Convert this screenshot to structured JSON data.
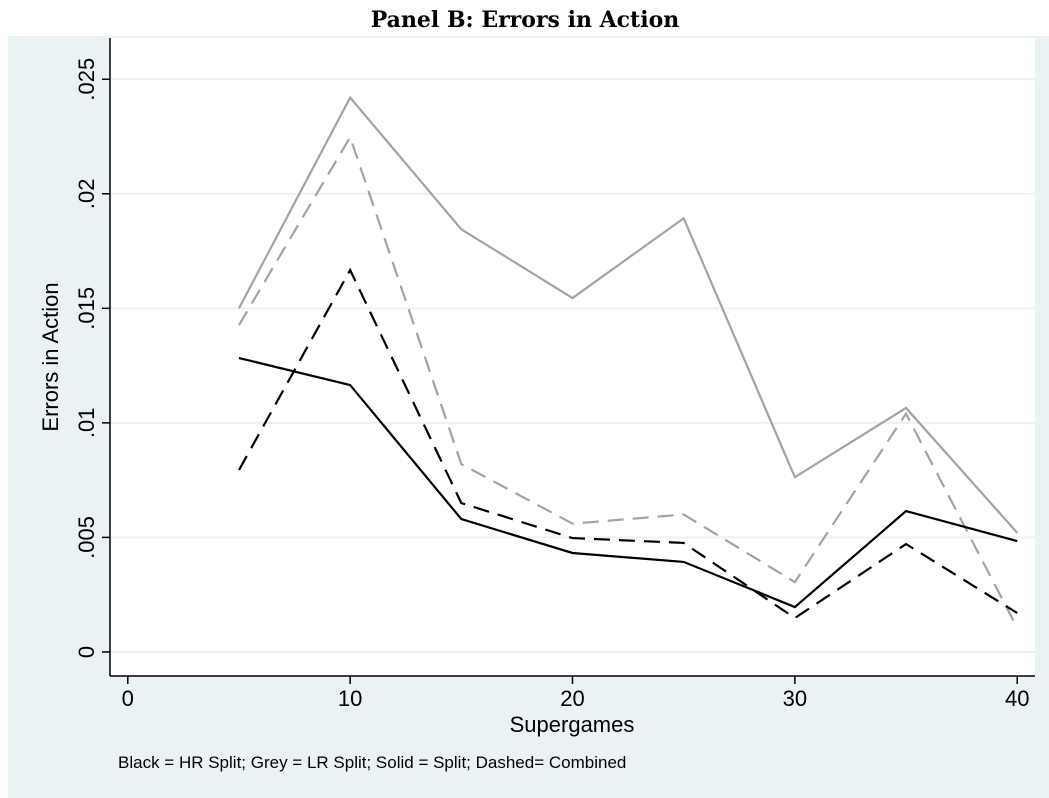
{
  "chart_data": {
    "type": "line",
    "title": "Panel B: Errors in Action",
    "x_label": "Supergames",
    "y_label": "Errors in Action",
    "note": "Black = HR Split; Grey = LR Split; Solid = Split; Dashed= Combined",
    "x": [
      5,
      10,
      15,
      20,
      25,
      30,
      35,
      40
    ],
    "series": [
      {
        "color": "#a3a3a3",
        "dash": false,
        "values": [
          0.015,
          0.0242,
          0.01845,
          0.01545,
          0.01893,
          0.00763,
          0.01065,
          0.0052
        ]
      },
      {
        "color": "#a3a3a3",
        "dash": true,
        "values": [
          0.01427,
          0.02247,
          0.0082,
          0.0056,
          0.006,
          0.00305,
          0.0104,
          0.00105
        ]
      },
      {
        "color": "#000000",
        "dash": false,
        "values": [
          0.01283,
          0.01165,
          0.0058,
          0.00432,
          0.00393,
          0.00196,
          0.00615,
          0.00484
        ]
      },
      {
        "color": "#000000",
        "dash": true,
        "values": [
          0.00794,
          0.01667,
          0.0065,
          0.00497,
          0.00476,
          0.00148,
          0.00471,
          0.0017
        ]
      }
    ],
    "xlim": [
      -0.8,
      40.8
    ],
    "xticks": [
      0,
      10,
      20,
      30,
      40
    ],
    "ylim": [
      -0.00105,
      0.0268
    ],
    "yticks": [
      0,
      {
        "value": 0.005,
        "label": ".005"
      },
      {
        "value": 0.01,
        "label": ".01"
      },
      {
        "value": 0.015,
        "label": ".015"
      },
      {
        "value": 0.02,
        "label": ".02"
      },
      {
        "value": 0.025,
        "label": ".025"
      }
    ],
    "grid": true
  }
}
